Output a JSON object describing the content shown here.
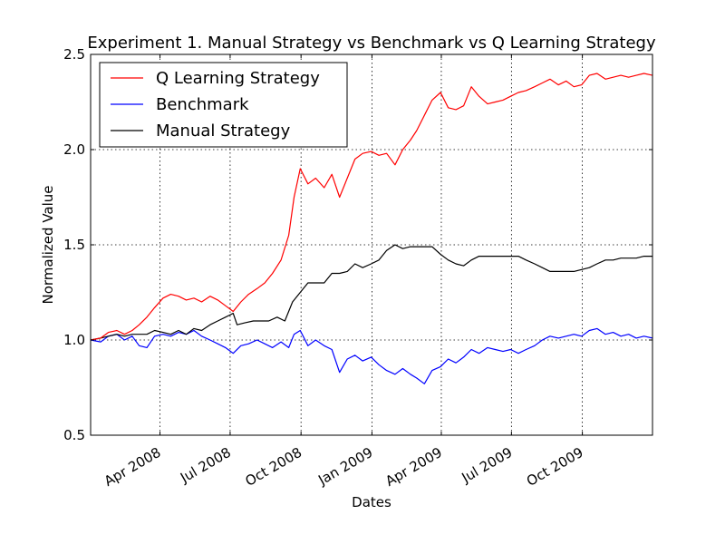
{
  "chart_data": {
    "type": "line",
    "title": "Experiment 1. Manual Strategy vs Benchmark vs Q Learning Strategy",
    "xlabel": "Dates",
    "ylabel": "Normalized Value",
    "xlim": [
      "2008-01-02",
      "2009-12-31"
    ],
    "ylim": [
      0.5,
      2.5
    ],
    "yticks": [
      0.5,
      1.0,
      1.5,
      2.0,
      2.5
    ],
    "ytick_labels": [
      "0.5",
      "1.0",
      "1.5",
      "2.0",
      "2.5"
    ],
    "xticks": [
      "2008-04-01",
      "2008-07-01",
      "2008-10-01",
      "2009-01-01",
      "2009-04-01",
      "2009-07-01",
      "2009-10-01"
    ],
    "xtick_labels": [
      "Apr 2008",
      "Jul 2008",
      "Oct 2008",
      "Jan 2009",
      "Apr 2009",
      "Jul 2009",
      "Oct 2009"
    ],
    "grid": true,
    "legend_position": "top-left",
    "series": [
      {
        "name": "Q Learning Strategy",
        "color": "#ff0000",
        "points": [
          [
            "2008-01-02",
            1.0
          ],
          [
            "2008-01-15",
            1.01
          ],
          [
            "2008-01-25",
            1.04
          ],
          [
            "2008-02-05",
            1.05
          ],
          [
            "2008-02-15",
            1.03
          ],
          [
            "2008-02-25",
            1.05
          ],
          [
            "2008-03-05",
            1.08
          ],
          [
            "2008-03-15",
            1.12
          ],
          [
            "2008-03-25",
            1.17
          ],
          [
            "2008-04-05",
            1.22
          ],
          [
            "2008-04-15",
            1.24
          ],
          [
            "2008-04-25",
            1.23
          ],
          [
            "2008-05-05",
            1.21
          ],
          [
            "2008-05-15",
            1.22
          ],
          [
            "2008-05-25",
            1.2
          ],
          [
            "2008-06-05",
            1.23
          ],
          [
            "2008-06-15",
            1.21
          ],
          [
            "2008-06-25",
            1.18
          ],
          [
            "2008-07-05",
            1.15
          ],
          [
            "2008-07-15",
            1.2
          ],
          [
            "2008-07-25",
            1.24
          ],
          [
            "2008-08-05",
            1.27
          ],
          [
            "2008-08-15",
            1.3
          ],
          [
            "2008-08-25",
            1.35
          ],
          [
            "2008-09-05",
            1.42
          ],
          [
            "2008-09-15",
            1.55
          ],
          [
            "2008-09-22",
            1.75
          ],
          [
            "2008-09-30",
            1.9
          ],
          [
            "2008-10-10",
            1.82
          ],
          [
            "2008-10-20",
            1.85
          ],
          [
            "2008-10-31",
            1.8
          ],
          [
            "2008-11-10",
            1.87
          ],
          [
            "2008-11-20",
            1.75
          ],
          [
            "2008-11-30",
            1.85
          ],
          [
            "2008-12-10",
            1.95
          ],
          [
            "2008-12-20",
            1.98
          ],
          [
            "2008-12-31",
            1.99
          ],
          [
            "2009-01-10",
            1.97
          ],
          [
            "2009-01-20",
            1.98
          ],
          [
            "2009-01-31",
            1.92
          ],
          [
            "2009-02-10",
            2.0
          ],
          [
            "2009-02-20",
            2.05
          ],
          [
            "2009-02-28",
            2.1
          ],
          [
            "2009-03-10",
            2.18
          ],
          [
            "2009-03-20",
            2.26
          ],
          [
            "2009-03-31",
            2.3
          ],
          [
            "2009-04-10",
            2.22
          ],
          [
            "2009-04-20",
            2.21
          ],
          [
            "2009-04-30",
            2.23
          ],
          [
            "2009-05-10",
            2.33
          ],
          [
            "2009-05-20",
            2.28
          ],
          [
            "2009-05-31",
            2.24
          ],
          [
            "2009-06-10",
            2.25
          ],
          [
            "2009-06-20",
            2.26
          ],
          [
            "2009-06-30",
            2.28
          ],
          [
            "2009-07-10",
            2.3
          ],
          [
            "2009-07-20",
            2.31
          ],
          [
            "2009-07-31",
            2.33
          ],
          [
            "2009-08-10",
            2.35
          ],
          [
            "2009-08-20",
            2.37
          ],
          [
            "2009-08-31",
            2.34
          ],
          [
            "2009-09-10",
            2.36
          ],
          [
            "2009-09-20",
            2.33
          ],
          [
            "2009-09-30",
            2.34
          ],
          [
            "2009-10-10",
            2.39
          ],
          [
            "2009-10-20",
            2.4
          ],
          [
            "2009-10-31",
            2.37
          ],
          [
            "2009-11-10",
            2.38
          ],
          [
            "2009-11-20",
            2.39
          ],
          [
            "2009-11-30",
            2.38
          ],
          [
            "2009-12-10",
            2.39
          ],
          [
            "2009-12-20",
            2.4
          ],
          [
            "2009-12-31",
            2.39
          ]
        ]
      },
      {
        "name": "Benchmark",
        "color": "#0000ff",
        "points": [
          [
            "2008-01-02",
            1.0
          ],
          [
            "2008-01-15",
            0.99
          ],
          [
            "2008-01-25",
            1.02
          ],
          [
            "2008-02-05",
            1.03
          ],
          [
            "2008-02-15",
            1.0
          ],
          [
            "2008-02-25",
            1.02
          ],
          [
            "2008-03-05",
            0.97
          ],
          [
            "2008-03-15",
            0.96
          ],
          [
            "2008-03-25",
            1.02
          ],
          [
            "2008-04-05",
            1.03
          ],
          [
            "2008-04-15",
            1.02
          ],
          [
            "2008-04-25",
            1.04
          ],
          [
            "2008-05-05",
            1.03
          ],
          [
            "2008-05-15",
            1.05
          ],
          [
            "2008-05-25",
            1.02
          ],
          [
            "2008-06-05",
            1.0
          ],
          [
            "2008-06-15",
            0.98
          ],
          [
            "2008-06-25",
            0.96
          ],
          [
            "2008-07-05",
            0.93
          ],
          [
            "2008-07-15",
            0.97
          ],
          [
            "2008-07-25",
            0.98
          ],
          [
            "2008-08-05",
            1.0
          ],
          [
            "2008-08-15",
            0.98
          ],
          [
            "2008-08-25",
            0.96
          ],
          [
            "2008-09-05",
            0.99
          ],
          [
            "2008-09-15",
            0.96
          ],
          [
            "2008-09-22",
            1.03
          ],
          [
            "2008-09-30",
            1.05
          ],
          [
            "2008-10-10",
            0.97
          ],
          [
            "2008-10-20",
            1.0
          ],
          [
            "2008-10-31",
            0.97
          ],
          [
            "2008-11-10",
            0.95
          ],
          [
            "2008-11-20",
            0.83
          ],
          [
            "2008-11-30",
            0.9
          ],
          [
            "2008-12-10",
            0.92
          ],
          [
            "2008-12-20",
            0.89
          ],
          [
            "2008-12-31",
            0.91
          ],
          [
            "2009-01-10",
            0.87
          ],
          [
            "2009-01-20",
            0.84
          ],
          [
            "2009-01-31",
            0.82
          ],
          [
            "2009-02-10",
            0.85
          ],
          [
            "2009-02-20",
            0.82
          ],
          [
            "2009-02-28",
            0.8
          ],
          [
            "2009-03-10",
            0.77
          ],
          [
            "2009-03-20",
            0.84
          ],
          [
            "2009-03-31",
            0.86
          ],
          [
            "2009-04-10",
            0.9
          ],
          [
            "2009-04-20",
            0.88
          ],
          [
            "2009-04-30",
            0.91
          ],
          [
            "2009-05-10",
            0.95
          ],
          [
            "2009-05-20",
            0.93
          ],
          [
            "2009-05-31",
            0.96
          ],
          [
            "2009-06-10",
            0.95
          ],
          [
            "2009-06-20",
            0.94
          ],
          [
            "2009-06-30",
            0.95
          ],
          [
            "2009-07-10",
            0.93
          ],
          [
            "2009-07-20",
            0.95
          ],
          [
            "2009-07-31",
            0.97
          ],
          [
            "2009-08-10",
            1.0
          ],
          [
            "2009-08-20",
            1.02
          ],
          [
            "2009-08-31",
            1.01
          ],
          [
            "2009-09-10",
            1.02
          ],
          [
            "2009-09-20",
            1.03
          ],
          [
            "2009-09-30",
            1.02
          ],
          [
            "2009-10-10",
            1.05
          ],
          [
            "2009-10-20",
            1.06
          ],
          [
            "2009-10-31",
            1.03
          ],
          [
            "2009-11-10",
            1.04
          ],
          [
            "2009-11-20",
            1.02
          ],
          [
            "2009-11-30",
            1.03
          ],
          [
            "2009-12-10",
            1.01
          ],
          [
            "2009-12-20",
            1.02
          ],
          [
            "2009-12-31",
            1.01
          ]
        ]
      },
      {
        "name": "Manual Strategy",
        "color": "#000000",
        "points": [
          [
            "2008-01-02",
            1.0
          ],
          [
            "2008-01-15",
            1.01
          ],
          [
            "2008-01-25",
            1.02
          ],
          [
            "2008-02-05",
            1.03
          ],
          [
            "2008-02-15",
            1.02
          ],
          [
            "2008-02-25",
            1.03
          ],
          [
            "2008-03-05",
            1.03
          ],
          [
            "2008-03-15",
            1.03
          ],
          [
            "2008-03-25",
            1.05
          ],
          [
            "2008-04-05",
            1.04
          ],
          [
            "2008-04-15",
            1.03
          ],
          [
            "2008-04-25",
            1.05
          ],
          [
            "2008-05-05",
            1.03
          ],
          [
            "2008-05-15",
            1.06
          ],
          [
            "2008-05-25",
            1.05
          ],
          [
            "2008-06-05",
            1.08
          ],
          [
            "2008-06-15",
            1.1
          ],
          [
            "2008-06-25",
            1.12
          ],
          [
            "2008-07-05",
            1.14
          ],
          [
            "2008-07-10",
            1.08
          ],
          [
            "2008-07-20",
            1.09
          ],
          [
            "2008-07-31",
            1.1
          ],
          [
            "2008-08-10",
            1.1
          ],
          [
            "2008-08-20",
            1.1
          ],
          [
            "2008-08-31",
            1.12
          ],
          [
            "2008-09-10",
            1.1
          ],
          [
            "2008-09-20",
            1.2
          ],
          [
            "2008-09-30",
            1.25
          ],
          [
            "2008-10-10",
            1.3
          ],
          [
            "2008-10-20",
            1.3
          ],
          [
            "2008-10-31",
            1.3
          ],
          [
            "2008-11-10",
            1.35
          ],
          [
            "2008-11-20",
            1.35
          ],
          [
            "2008-11-30",
            1.36
          ],
          [
            "2008-12-10",
            1.4
          ],
          [
            "2008-12-20",
            1.38
          ],
          [
            "2008-12-31",
            1.4
          ],
          [
            "2009-01-10",
            1.42
          ],
          [
            "2009-01-20",
            1.47
          ],
          [
            "2009-01-31",
            1.5
          ],
          [
            "2009-02-10",
            1.48
          ],
          [
            "2009-02-20",
            1.49
          ],
          [
            "2009-02-28",
            1.49
          ],
          [
            "2009-03-10",
            1.49
          ],
          [
            "2009-03-20",
            1.49
          ],
          [
            "2009-03-31",
            1.45
          ],
          [
            "2009-04-10",
            1.42
          ],
          [
            "2009-04-20",
            1.4
          ],
          [
            "2009-04-30",
            1.39
          ],
          [
            "2009-05-10",
            1.42
          ],
          [
            "2009-05-20",
            1.44
          ],
          [
            "2009-05-31",
            1.44
          ],
          [
            "2009-06-10",
            1.44
          ],
          [
            "2009-06-20",
            1.44
          ],
          [
            "2009-06-30",
            1.44
          ],
          [
            "2009-07-10",
            1.44
          ],
          [
            "2009-07-20",
            1.42
          ],
          [
            "2009-07-31",
            1.4
          ],
          [
            "2009-08-10",
            1.38
          ],
          [
            "2009-08-20",
            1.36
          ],
          [
            "2009-08-31",
            1.36
          ],
          [
            "2009-09-10",
            1.36
          ],
          [
            "2009-09-20",
            1.36
          ],
          [
            "2009-09-30",
            1.37
          ],
          [
            "2009-10-10",
            1.38
          ],
          [
            "2009-10-20",
            1.4
          ],
          [
            "2009-10-31",
            1.42
          ],
          [
            "2009-11-10",
            1.42
          ],
          [
            "2009-11-20",
            1.43
          ],
          [
            "2009-11-30",
            1.43
          ],
          [
            "2009-12-10",
            1.43
          ],
          [
            "2009-12-20",
            1.44
          ],
          [
            "2009-12-31",
            1.44
          ]
        ]
      }
    ]
  }
}
